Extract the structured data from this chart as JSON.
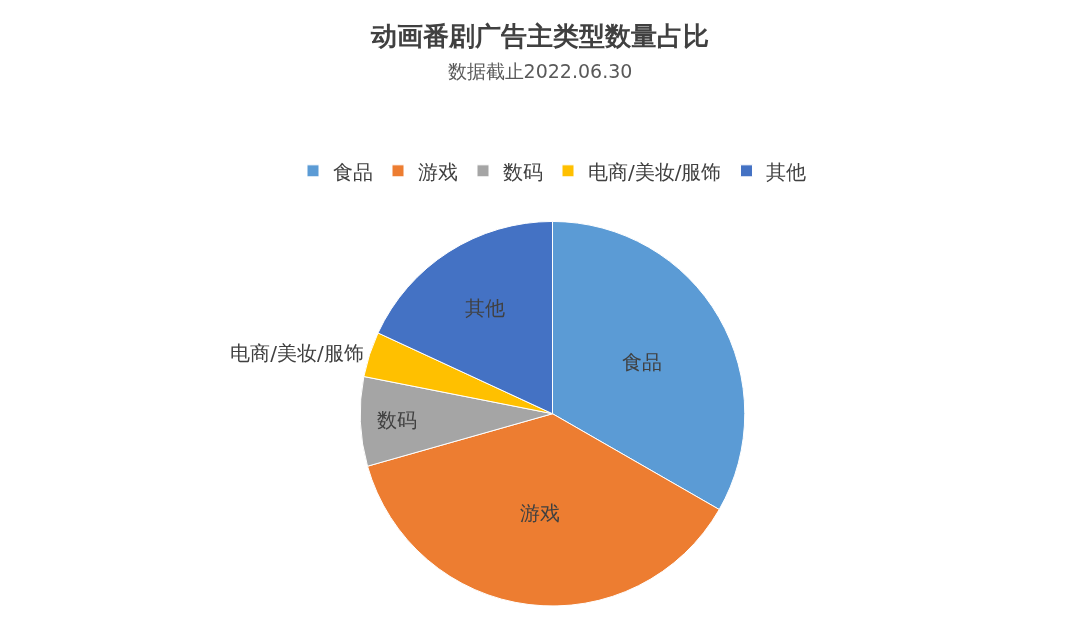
{
  "chart_data": {
    "type": "pie",
    "title": "动画番剧广告主类型数量占比",
    "subtitle": "数据截止2022.06.30",
    "categories": [
      "食品",
      "游戏",
      "数码",
      "电商/美妆/服饰",
      "其他"
    ],
    "values": [
      33.3,
      37.3,
      7.5,
      3.8,
      18.1
    ],
    "colors": [
      "#5b9bd5",
      "#ed7d31",
      "#a5a5a5",
      "#ffc000",
      "#4472c4"
    ],
    "legend": "top"
  }
}
